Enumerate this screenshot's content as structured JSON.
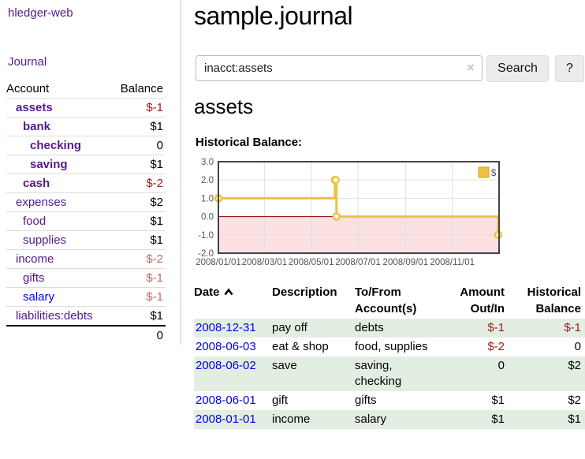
{
  "app_title": "hledger-web",
  "sidebar": {
    "journal_link": "Journal",
    "accounts": {
      "header": {
        "account": "Account",
        "balance": "Balance"
      },
      "rows": [
        {
          "name": "assets",
          "balance": "$-1"
        },
        {
          "name": "bank",
          "balance": "$1"
        },
        {
          "name": "checking",
          "balance": "0"
        },
        {
          "name": "saving",
          "balance": "$1"
        },
        {
          "name": "cash",
          "balance": "$-2"
        },
        {
          "name": "expenses",
          "balance": "$2"
        },
        {
          "name": "food",
          "balance": "$1"
        },
        {
          "name": "supplies",
          "balance": "$1"
        },
        {
          "name": "income",
          "balance": "$-2"
        },
        {
          "name": "gifts",
          "balance": "$-1"
        },
        {
          "name": "salary",
          "balance": "$-1"
        },
        {
          "name": "liabilities:debts",
          "balance": "$1"
        }
      ],
      "total": "0"
    }
  },
  "header": {
    "title": "sample.journal"
  },
  "search": {
    "value": "inacct:assets",
    "clear_icon": "×",
    "search_button": "Search",
    "help_button": "?"
  },
  "account_page": {
    "heading": "assets",
    "chart_title": "Historical Balance:"
  },
  "chart_data": {
    "type": "line",
    "title": "Historical Balance",
    "series": [
      {
        "name": "$",
        "color": "#edc240",
        "points": [
          [
            "2008-01-01",
            1
          ],
          [
            "2008-06-01",
            2
          ],
          [
            "2008-06-02",
            2
          ],
          [
            "2008-06-03",
            0
          ],
          [
            "2008-12-31",
            -1
          ]
        ]
      }
    ],
    "x_range": [
      "2008-01-01",
      "2009-01-01"
    ],
    "x_ticks": [
      "2008/01/01",
      "2008/03/01",
      "2008/05/01",
      "2008/07/01",
      "2008/09/01",
      "2008/11/01"
    ],
    "y_ticks": [
      "3.0",
      "2.0",
      "1.0",
      "0.0",
      "-1.0",
      "-2.0"
    ],
    "ylim": [
      -2,
      3
    ],
    "grid": true,
    "legend": {
      "label": "$",
      "position": "top-right"
    },
    "colors": {
      "negative_region": "#fbe1e1",
      "zero_line": "#8b0000",
      "grid_line": "#e0e0e0",
      "border": "#434343",
      "tick_text": "#545454"
    }
  },
  "register": {
    "headers": {
      "date": "Date",
      "description": "Description",
      "account": "To/From Account(s)",
      "amount": "Amount Out/In",
      "balance": "Historical Balance"
    },
    "rows": [
      {
        "date": "2008-12-31",
        "description": "pay off",
        "accounts": "debts",
        "amount": "$-1",
        "balance": "$-1"
      },
      {
        "date": "2008-06-03",
        "description": "eat & shop",
        "accounts": "food, supplies",
        "amount": "$-2",
        "balance": "0"
      },
      {
        "date": "2008-06-02",
        "description": "save",
        "accounts": "saving,\nchecking",
        "amount": "0",
        "balance": "$2"
      },
      {
        "date": "2008-06-01",
        "description": "gift",
        "accounts": "gifts",
        "amount": "$1",
        "balance": "$2"
      },
      {
        "date": "2008-01-01",
        "description": "income",
        "accounts": "salary",
        "amount": "$1",
        "balance": "$1"
      }
    ]
  },
  "colors": {
    "link_purple": "#551a8b",
    "link_blue": "#0000ee",
    "negative_strong": "#9b1c1c",
    "negative_soft": "#c26868",
    "row_stripe_green": "#e3eee3",
    "series_yellow": "#edc240"
  }
}
